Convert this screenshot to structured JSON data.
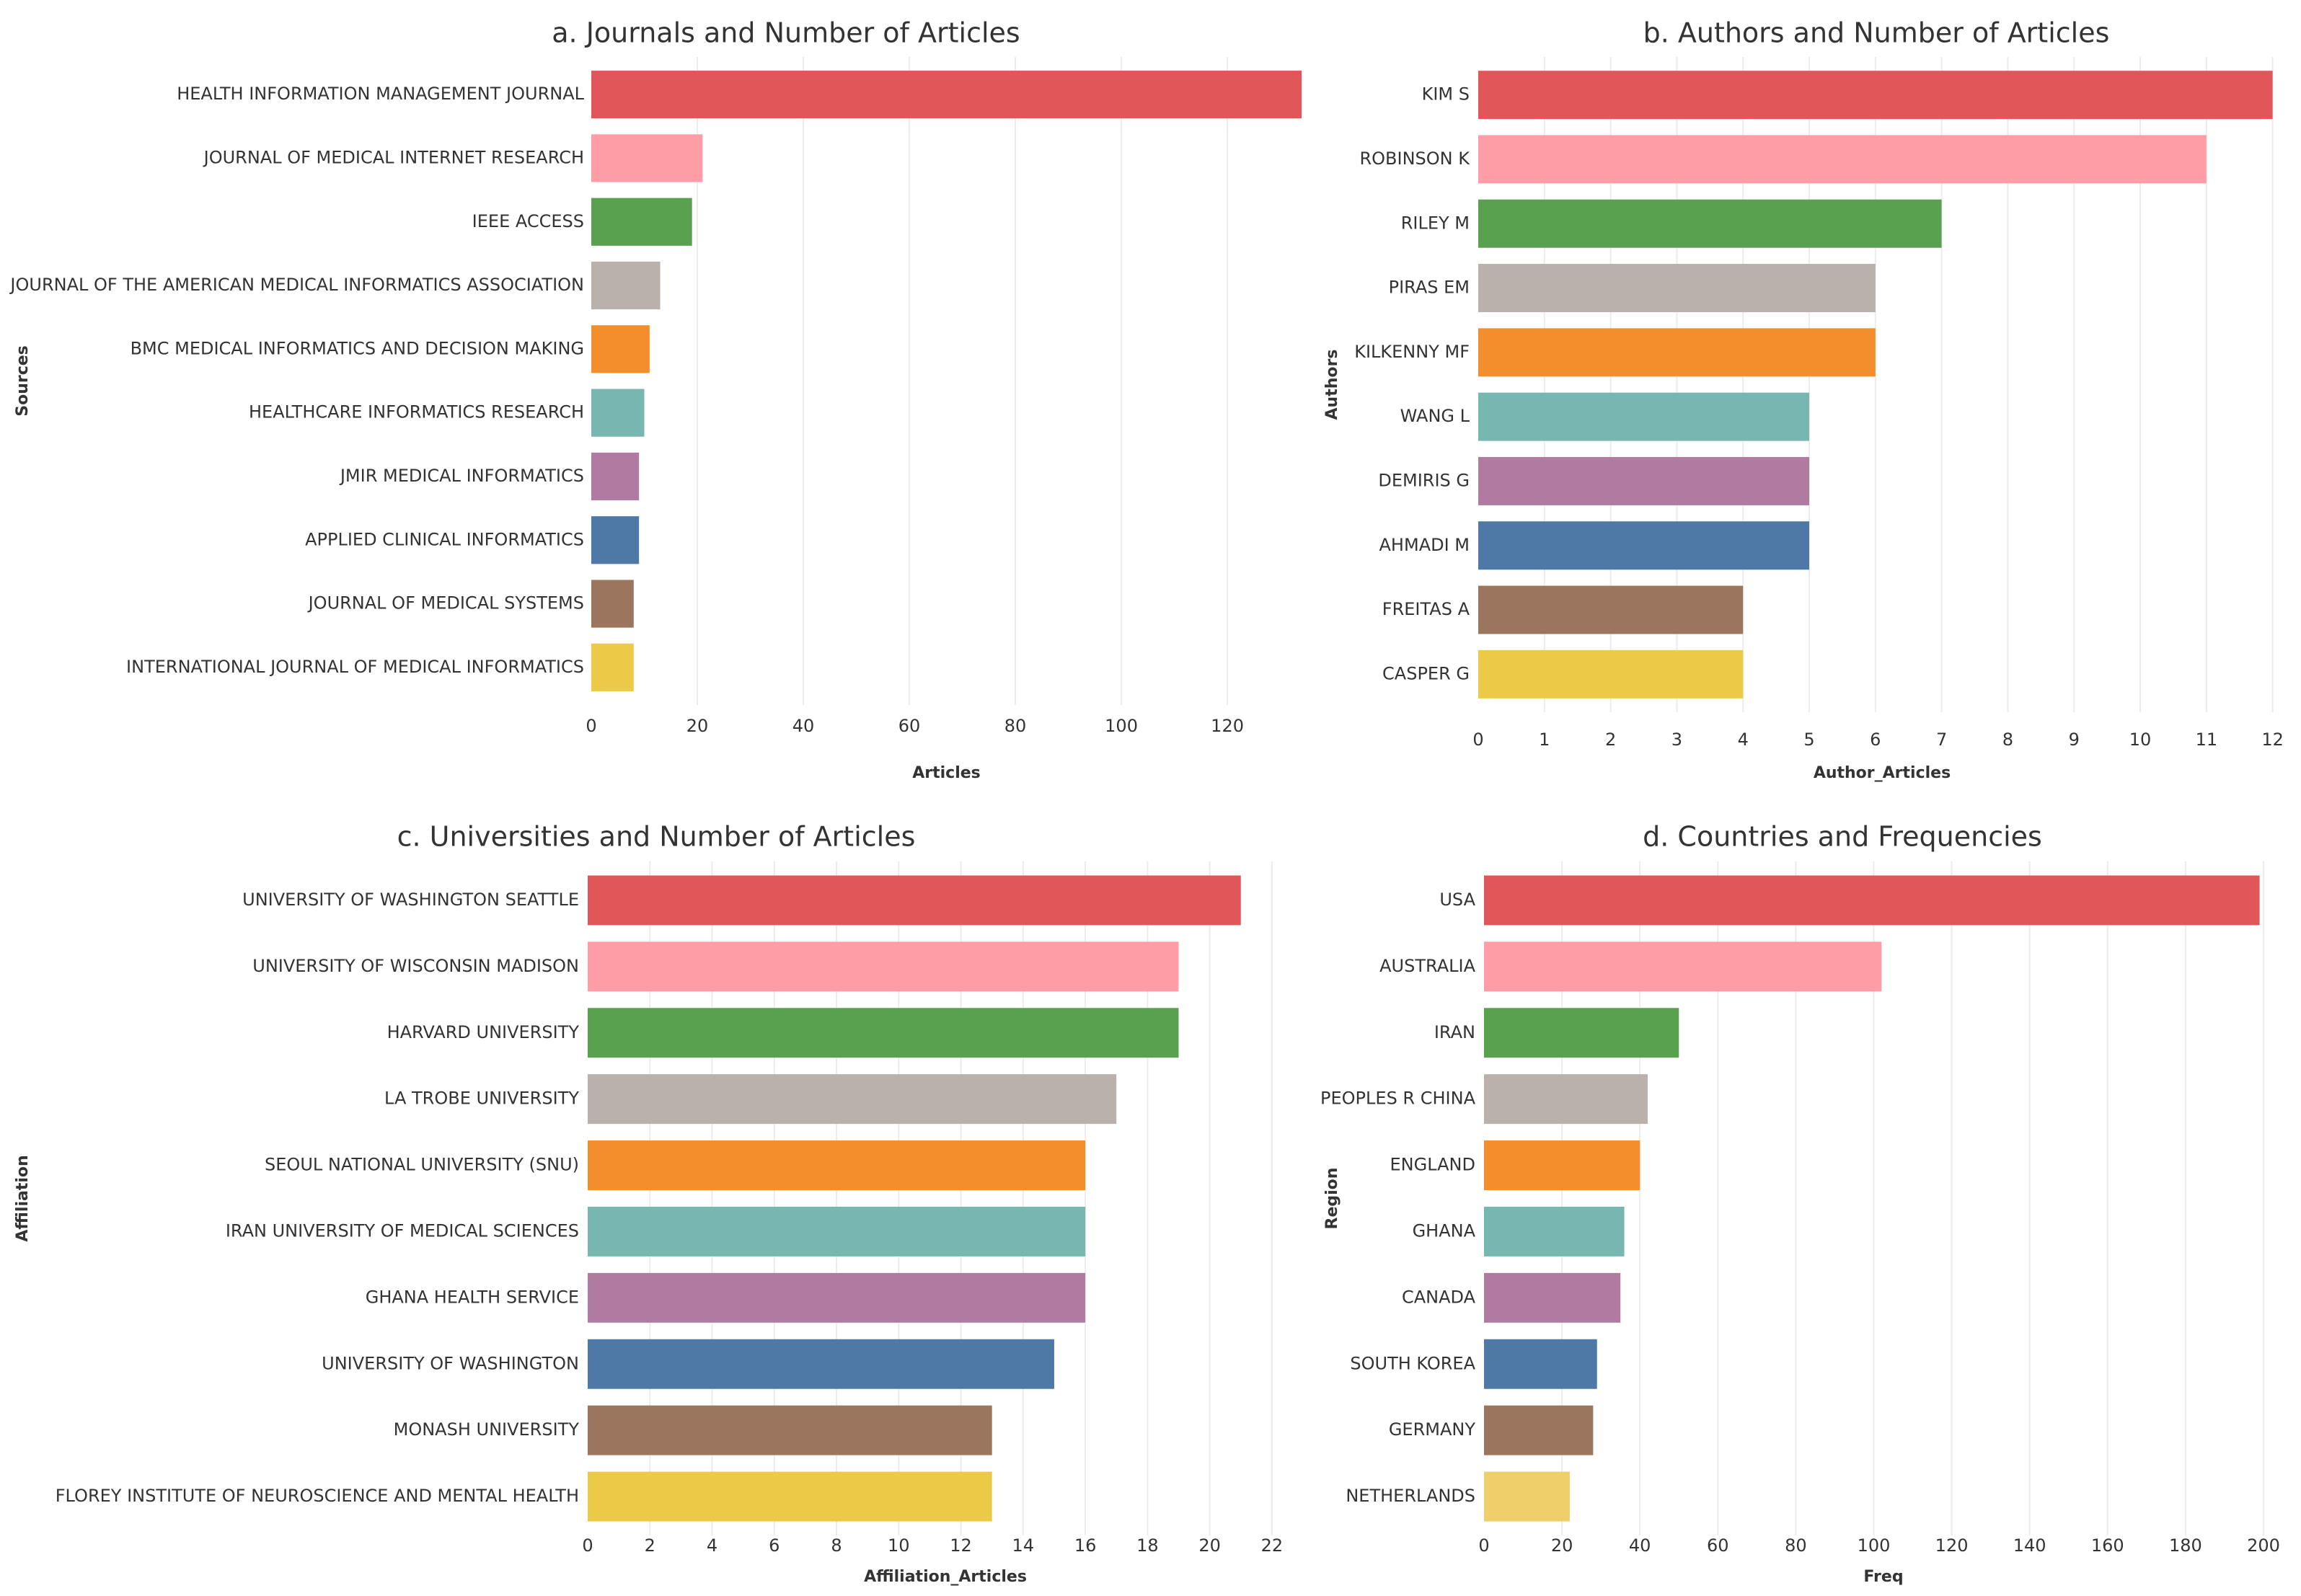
{
  "chart_data": [
    {
      "id": "a",
      "type": "bar",
      "orientation": "horizontal",
      "title": "a. Journals and Number of Articles",
      "ylabel": "Sources",
      "xlabel": "Articles",
      "categories": [
        "HEALTH INFORMATION MANAGEMENT JOURNAL",
        "JOURNAL OF MEDICAL INTERNET RESEARCH",
        "IEEE ACCESS",
        "JOURNAL OF THE AMERICAN MEDICAL INFORMATICS ASSOCIATION",
        "BMC MEDICAL INFORMATICS AND DECISION MAKING",
        "HEALTHCARE INFORMATICS RESEARCH",
        "JMIR MEDICAL INFORMATICS",
        "APPLIED CLINICAL INFORMATICS",
        "JOURNAL OF MEDICAL SYSTEMS",
        "INTERNATIONAL JOURNAL OF MEDICAL INFORMATICS"
      ],
      "values": [
        134,
        21,
        19,
        13,
        11,
        10,
        9,
        9,
        8,
        8
      ],
      "xlim": [
        0,
        134
      ],
      "xticks": [
        0,
        20,
        40,
        60,
        80,
        100,
        120
      ],
      "grid": "vertical"
    },
    {
      "id": "b",
      "type": "bar",
      "orientation": "horizontal",
      "title": "b. Authors and Number of Articles",
      "ylabel": "Authors",
      "xlabel": "Author_Articles",
      "categories": [
        "KIM S",
        "ROBINSON K",
        "RILEY M",
        "PIRAS EM",
        "KILKENNY MF",
        "WANG L",
        "DEMIRIS G",
        "AHMADI M",
        "FREITAS A",
        "CASPER G"
      ],
      "values": [
        12,
        11,
        7,
        6,
        6,
        5,
        5,
        5,
        4,
        4
      ],
      "xlim": [
        0,
        12.2
      ],
      "xticks": [
        0,
        1,
        2,
        3,
        4,
        5,
        6,
        7,
        8,
        9,
        10,
        11,
        12
      ],
      "grid": "vertical"
    },
    {
      "id": "c",
      "type": "bar",
      "orientation": "horizontal",
      "title": "c. Universities and Number of Articles",
      "ylabel": "Affiliation",
      "xlabel": "Affiliation_Articles",
      "categories": [
        "UNIVERSITY OF WASHINGTON SEATTLE",
        "UNIVERSITY OF WISCONSIN MADISON",
        "HARVARD UNIVERSITY",
        "LA TROBE UNIVERSITY",
        "SEOUL NATIONAL UNIVERSITY (SNU)",
        "IRAN UNIVERSITY OF MEDICAL SCIENCES",
        "GHANA HEALTH SERVICE",
        "UNIVERSITY OF WASHINGTON",
        "MONASH UNIVERSITY",
        "FLOREY INSTITUTE OF NEUROSCIENCE AND MENTAL HEALTH"
      ],
      "values": [
        21,
        19,
        19,
        17,
        16,
        16,
        16,
        15,
        13,
        13
      ],
      "xlim": [
        0,
        23
      ],
      "xticks": [
        0,
        2,
        4,
        6,
        8,
        10,
        12,
        14,
        16,
        18,
        20,
        22
      ],
      "grid": "vertical"
    },
    {
      "id": "d",
      "type": "bar",
      "orientation": "horizontal",
      "title": "d. Countries and Frequencies",
      "ylabel": "Region",
      "xlabel": "Freq",
      "categories": [
        "USA",
        "AUSTRALIA",
        "IRAN",
        "PEOPLES R CHINA",
        "ENGLAND",
        "GHANA",
        "CANADA",
        "SOUTH KOREA",
        "GERMANY",
        "NETHERLANDS"
      ],
      "values": [
        199,
        102,
        50,
        42,
        40,
        36,
        35,
        29,
        28,
        22
      ],
      "xlim": [
        0,
        205
      ],
      "xticks": [
        0,
        20,
        40,
        60,
        80,
        100,
        120,
        140,
        160,
        180,
        200
      ],
      "grid": "vertical"
    }
  ],
  "colors": {
    "palette": [
      "#e15759",
      "#ff9da7",
      "#59a14f",
      "#bab0ac",
      "#f28e2b",
      "#76b7b2",
      "#b07aa1",
      "#4e79a7",
      "#9c755f",
      "#edc948"
    ],
    "palette_d_last": "#efcf6a",
    "grid": "#ececec",
    "axis": "#cccccc",
    "text": "#333333"
  }
}
